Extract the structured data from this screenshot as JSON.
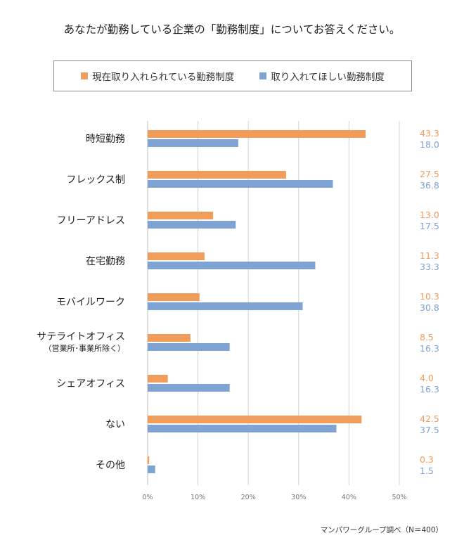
{
  "chart_data": {
    "type": "bar",
    "orientation": "horizontal",
    "title": "あなたが勤務している企業の「勤務制度」についてお答えください。",
    "categories": [
      "時短勤務",
      "フレックス制",
      "フリーアドレス",
      "在宅勤務",
      "モバイルワーク",
      "サテライトオフィス",
      "シェアオフィス",
      "ない",
      "その他"
    ],
    "category_sublabels": {
      "サテライトオフィス": "（営業所･事業所除く）"
    },
    "series": [
      {
        "name": "現在取り入れられている勤務制度",
        "color": "#f09d5b",
        "values": [
          43.3,
          27.5,
          13.0,
          11.3,
          10.3,
          8.5,
          4.0,
          42.5,
          0.3
        ]
      },
      {
        "name": "取り入れてほしい勤務制度",
        "color": "#7fa3d2",
        "values": [
          18.0,
          36.8,
          17.5,
          33.3,
          30.8,
          16.3,
          16.3,
          37.5,
          1.5
        ]
      }
    ],
    "xlim": [
      0,
      50
    ],
    "xticks": [
      "0%",
      "10%",
      "20%",
      "30%",
      "40%",
      "50%"
    ],
    "grid": true,
    "legend_position": "top",
    "source": "マンパワーグループ調べ（N＝400）"
  }
}
